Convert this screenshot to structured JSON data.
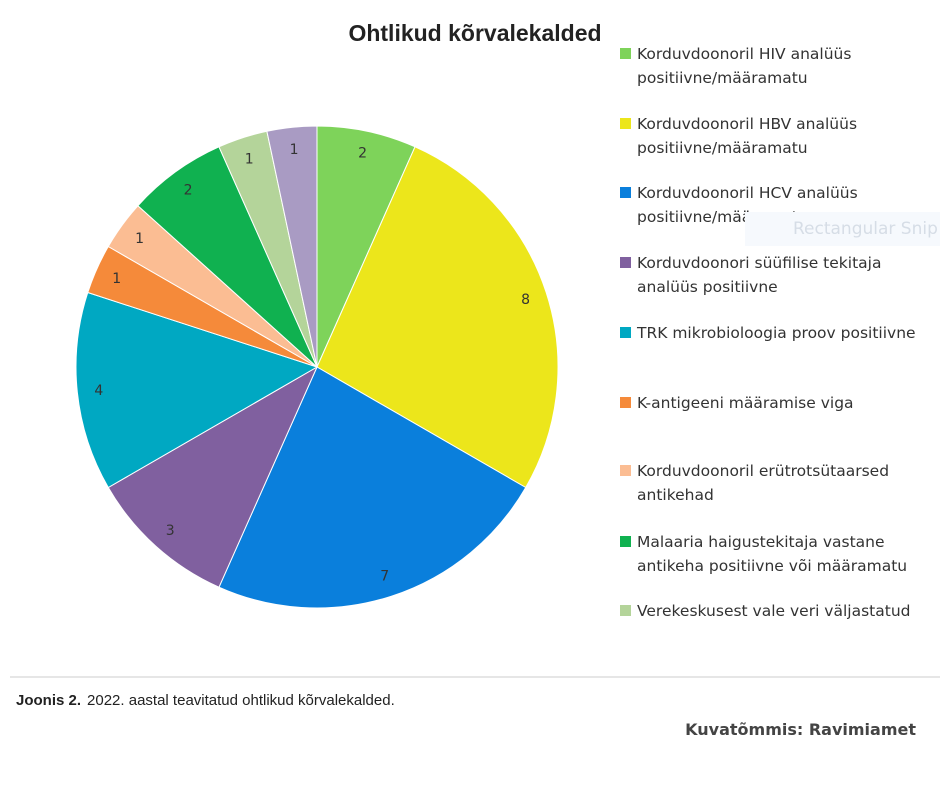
{
  "chart_data": {
    "type": "pie",
    "title": "Ohtlikud kõrvalekalded",
    "start_angle": "top, clockwise",
    "legend_position": "right",
    "slices": [
      {
        "label": "Korduvdoonoril HIV analüüs positiivne/määramatu",
        "value": 2,
        "color": "#7ed35a"
      },
      {
        "label": "Korduvdoonoril HBV analüüs positiivne/määramatu",
        "value": 8,
        "color": "#ece61b"
      },
      {
        "label": "Korduvdoonoril HCV analüüs positiivne/määramatu",
        "value": 7,
        "color": "#0a7fdc"
      },
      {
        "label": "Korduvdoonori süüfilise tekitaja analüüs positiivne",
        "value": 3,
        "color": "#80609f"
      },
      {
        "label": "TRK mikrobioloogia proov positiivne",
        "value": 4,
        "color": "#00a8c2"
      },
      {
        "label": "K-antigeeni määramise viga",
        "value": 1,
        "color": "#f58a3a"
      },
      {
        "label": "Korduvdoonoril erütrotsütaarsed antikehad",
        "value": 1,
        "color": "#fbbd93"
      },
      {
        "label": "Malaaria haigustekitaja vastane antikeha positiivne või määramatu",
        "value": 2,
        "color": "#10b150"
      },
      {
        "label": "Verekeskusest vale veri väljastatud",
        "value": 1,
        "color": "#b4d49a"
      },
      {
        "label": "",
        "value": 1,
        "color": "#a99bc3"
      }
    ]
  },
  "caption": {
    "prefix": "Joonis 2.",
    "text": "2022. aastal teavitatud ohtlikud kõrvalekalded."
  },
  "credit": "Kuvatõmmis: Ravimiamet",
  "overlay": {
    "snip_label": "Rectangular Snip"
  }
}
